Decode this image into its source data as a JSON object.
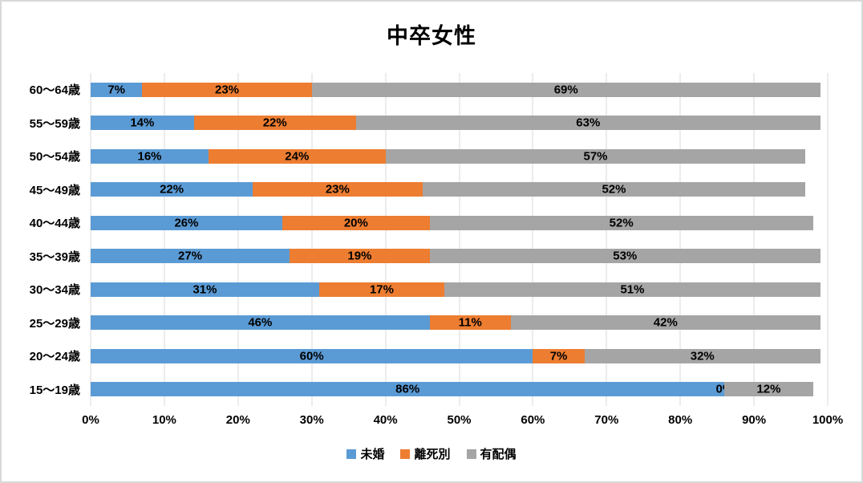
{
  "chart_data": {
    "type": "bar",
    "stacked": true,
    "orientation": "horizontal",
    "title": "中卒女性",
    "categories": [
      "60〜64歳",
      "55〜59歳",
      "50〜54歳",
      "45〜49歳",
      "40〜44歳",
      "35〜39歳",
      "30〜34歳",
      "25〜29歳",
      "20〜24歳",
      "15〜19歳"
    ],
    "series": [
      {
        "name": "未婚",
        "color": "#5B9BD5",
        "values": [
          7,
          14,
          16,
          22,
          26,
          27,
          31,
          46,
          60,
          86
        ]
      },
      {
        "name": "離死別",
        "color": "#ED7D31",
        "values": [
          23,
          22,
          24,
          23,
          20,
          19,
          17,
          11,
          7,
          0
        ]
      },
      {
        "name": "有配偶",
        "color": "#A5A5A5",
        "values": [
          69,
          63,
          57,
          52,
          52,
          53,
          51,
          42,
          32,
          12
        ]
      }
    ],
    "data_label_suffix": "%",
    "x_axis": {
      "min": 0,
      "max": 100,
      "tick_step": 10,
      "ticks": [
        "0%",
        "10%",
        "20%",
        "30%",
        "40%",
        "50%",
        "60%",
        "70%",
        "80%",
        "90%",
        "100%"
      ]
    },
    "grid": true,
    "legend_position": "bottom",
    "colors": {
      "gridline": "#D9D9D9",
      "chart_border": "#D9D9D9",
      "label_text": "#000000",
      "background": "#FFFFFF"
    }
  }
}
